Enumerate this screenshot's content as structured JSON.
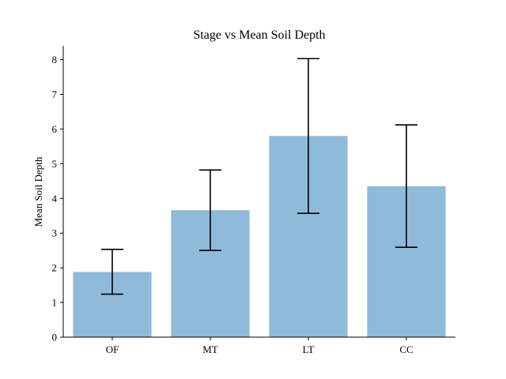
{
  "chart_data": {
    "type": "bar",
    "title": "Stage vs Mean Soil Depth",
    "xlabel": "",
    "ylabel": "Mean Soil Depth",
    "categories": [
      "OF",
      "MT",
      "LT",
      "CC"
    ],
    "values": [
      1.88,
      3.66,
      5.8,
      4.35
    ],
    "error_low": [
      1.24,
      2.5,
      3.57,
      2.59
    ],
    "error_high": [
      2.53,
      4.82,
      8.03,
      6.12
    ],
    "ylim": [
      0,
      8.4
    ],
    "yticks": [
      "0",
      "1",
      "2",
      "3",
      "4",
      "5",
      "6",
      "7",
      "8"
    ],
    "grid": false,
    "bar_color": "#8fbad9",
    "error_color": "#000000"
  }
}
